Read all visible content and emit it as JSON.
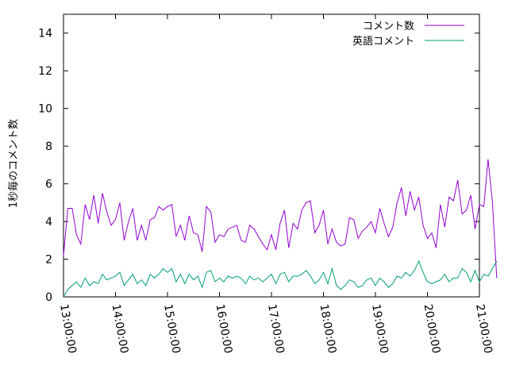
{
  "chart_data": {
    "type": "line",
    "title": "",
    "xlabel": "",
    "ylabel": "1秒毎のコメント数",
    "x_ticks": [
      "13:00:00",
      "14:00:00",
      "15:00:00",
      "16:00:00",
      "17:00:00",
      "18:00:00",
      "19:00:00",
      "20:00:00",
      "21:00:00"
    ],
    "xlim": [
      "13:00:00",
      "21:00:00"
    ],
    "x_start": "13:00:00",
    "x_step_minutes": 5,
    "y_ticks": [
      0,
      2,
      4,
      6,
      8,
      10,
      12,
      14
    ],
    "ylim": [
      0,
      15
    ],
    "grid": false,
    "legend_position": "top-right",
    "series": [
      {
        "name": "コメント数",
        "color": "#9400d3",
        "values": [
          2.2,
          4.7,
          4.7,
          3.3,
          2.8,
          4.9,
          4.1,
          5.4,
          3.9,
          5.5,
          4.5,
          3.8,
          4.1,
          5.0,
          3.0,
          4.0,
          4.7,
          3.0,
          3.8,
          3.0,
          4.1,
          4.2,
          4.8,
          4.6,
          4.8,
          4.9,
          3.2,
          3.8,
          3.0,
          4.3,
          3.4,
          3.3,
          2.4,
          4.8,
          4.5,
          2.9,
          3.3,
          3.2,
          3.6,
          3.7,
          3.8,
          3.0,
          2.9,
          3.8,
          3.6,
          3.2,
          2.8,
          2.5,
          3.3,
          2.5,
          3.9,
          4.6,
          2.6,
          3.9,
          3.6,
          4.6,
          5.0,
          5.1,
          3.4,
          3.8,
          4.6,
          2.8,
          3.6,
          2.9,
          2.7,
          2.8,
          4.2,
          4.1,
          3.1,
          3.5,
          3.7,
          4.0,
          3.4,
          4.7,
          3.9,
          3.2,
          3.7,
          5.0,
          5.8,
          4.3,
          5.6,
          4.6,
          5.3,
          3.8,
          3.1,
          3.4,
          2.6,
          4.9,
          3.7,
          5.3,
          5.1,
          6.2,
          4.4,
          4.6,
          5.4,
          3.6,
          4.9,
          4.8,
          7.3,
          5.0,
          1.0
        ]
      },
      {
        "name": "英語コメント",
        "color": "#009e73",
        "values": [
          0.0,
          0.4,
          0.6,
          0.8,
          0.5,
          1.0,
          0.6,
          0.8,
          0.7,
          1.2,
          0.9,
          1.0,
          1.1,
          1.3,
          0.6,
          0.9,
          1.2,
          0.7,
          0.9,
          0.6,
          1.2,
          1.0,
          1.2,
          1.5,
          1.3,
          1.5,
          0.8,
          1.2,
          0.7,
          1.2,
          0.9,
          1.1,
          0.5,
          1.3,
          1.4,
          0.8,
          1.0,
          0.8,
          1.1,
          1.0,
          1.1,
          1.0,
          0.7,
          1.1,
          0.9,
          1.0,
          0.8,
          1.0,
          1.2,
          0.7,
          1.2,
          1.3,
          0.8,
          1.1,
          1.1,
          1.2,
          1.4,
          1.1,
          0.7,
          0.9,
          1.3,
          0.7,
          1.5,
          0.6,
          0.4,
          0.6,
          0.9,
          0.8,
          0.5,
          0.6,
          0.9,
          1.0,
          0.6,
          1.0,
          0.8,
          0.5,
          0.7,
          1.1,
          1.0,
          1.3,
          1.1,
          1.4,
          1.9,
          1.3,
          0.8,
          0.7,
          0.8,
          0.9,
          1.2,
          0.8,
          1.0,
          1.0,
          1.5,
          1.3,
          0.8,
          1.4,
          0.8,
          1.2,
          1.1,
          1.5,
          1.9
        ]
      }
    ]
  }
}
